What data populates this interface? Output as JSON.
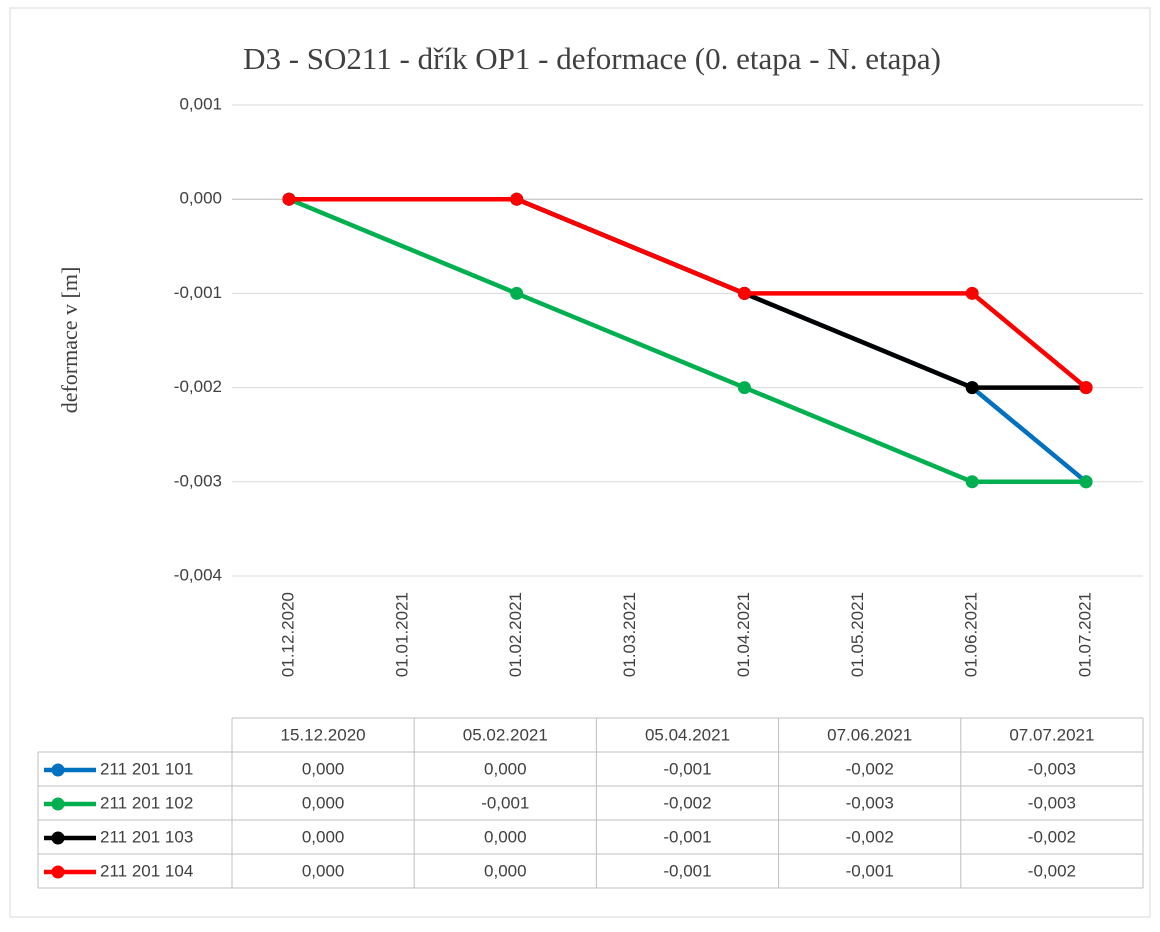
{
  "chart_data": {
    "type": "line",
    "title": "D3 - SO211 - dřík OP1 - deformace  (0. etapa - N. etapa)",
    "y_label": "deformace v [m]",
    "x": [
      "15.12.2020",
      "05.02.2021",
      "05.04.2021",
      "07.06.2021",
      "07.07.2021"
    ],
    "xlim": [
      "01.12.2020",
      "01.07.2021"
    ],
    "xticks": [
      "01.12.2020",
      "01.01.2021",
      "01.02.2021",
      "01.03.2021",
      "01.04.2021",
      "01.05.2021",
      "01.06.2021",
      "01.07.2021"
    ],
    "ylim": [
      -0.004,
      0.001
    ],
    "yticks": [
      {
        "value": 0.001,
        "label": "0,001"
      },
      {
        "value": 0,
        "label": "0,000"
      },
      {
        "value": -0.001,
        "label": "-0,001"
      },
      {
        "value": -0.002,
        "label": "-0,002"
      },
      {
        "value": -0.003,
        "label": "-0,003"
      },
      {
        "value": -0.004,
        "label": "-0,004"
      }
    ],
    "grid": true,
    "data_table": true,
    "series": [
      {
        "name": "211 201 101",
        "color": "#0070c0",
        "values": [
          0,
          0,
          -0.001,
          -0.002,
          -0.003
        ],
        "value_labels": [
          "0,000",
          "0,000",
          "-0,001",
          "-0,002",
          "-0,003"
        ]
      },
      {
        "name": "211 201 102",
        "color": "#00b050",
        "values": [
          0,
          -0.001,
          -0.002,
          -0.003,
          -0.003
        ],
        "value_labels": [
          "0,000",
          "-0,001",
          "-0,002",
          "-0,003",
          "-0,003"
        ]
      },
      {
        "name": "211 201 103",
        "color": "#000000",
        "values": [
          0,
          0,
          -0.001,
          -0.002,
          -0.002
        ],
        "value_labels": [
          "0,000",
          "0,000",
          "-0,001",
          "-0,002",
          "-0,002"
        ]
      },
      {
        "name": "211 201 104",
        "color": "#ff0000",
        "values": [
          0,
          0,
          -0.001,
          -0.001,
          -0.002
        ],
        "value_labels": [
          "0,000",
          "0,000",
          "-0,001",
          "-0,001",
          "-0,002"
        ]
      }
    ]
  }
}
